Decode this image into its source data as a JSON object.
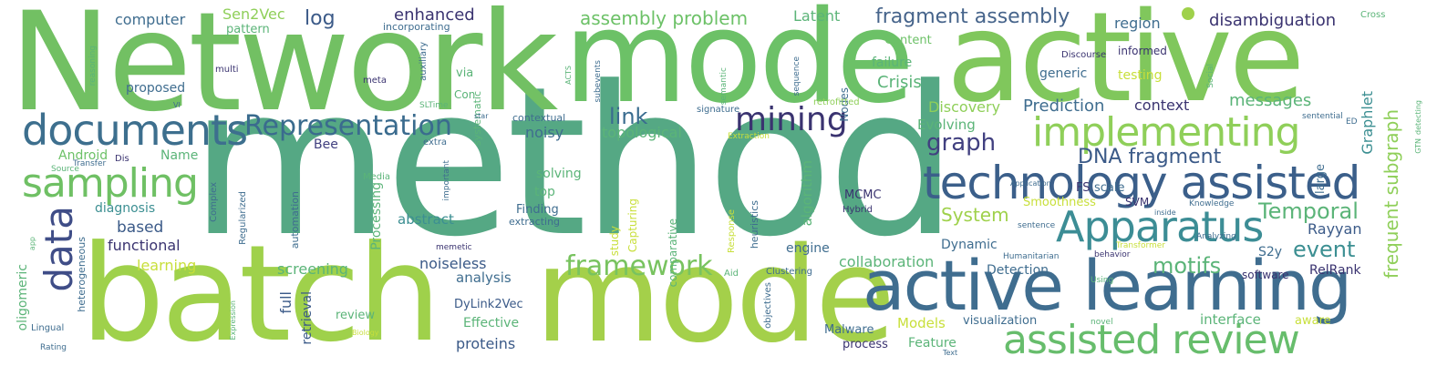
{
  "words": [
    {
      "text": "method",
      "color": "#55a884"
    },
    {
      "text": "Network",
      "color": "#72c063"
    },
    {
      "text": "mode",
      "color": "#6cc167"
    },
    {
      "text": "active",
      "color": "#80c75c"
    },
    {
      "text": "batch",
      "color": "#9fd14b"
    },
    {
      "text": "mode",
      "color": "#a4d04a"
    },
    {
      "text": "active learning",
      "color": "#3f6d8f"
    },
    {
      "text": "technology assisted",
      "color": "#3b5f8a"
    },
    {
      "text": "assisted review",
      "color": "#67bd6c"
    },
    {
      "text": "Apparatus",
      "color": "#3c8d95"
    },
    {
      "text": "implementing",
      "color": "#8fcf59"
    },
    {
      "text": "documents",
      "color": "#3d6f8e"
    },
    {
      "text": "sampling",
      "color": "#6fc064"
    },
    {
      "text": "data",
      "color": "#3f4d87"
    },
    {
      "text": "mining",
      "color": "#3a3370"
    },
    {
      "text": "Representation",
      "color": "#3a6b8e"
    },
    {
      "text": "framework",
      "color": "#78c35f"
    },
    {
      "text": "graph",
      "color": "#414080"
    },
    {
      "text": "Temporal",
      "color": "#5bb478"
    },
    {
      "text": "fragment assembly",
      "color": "#46648b"
    },
    {
      "text": "assembly problem",
      "color": "#6cc167"
    },
    {
      "text": "frequent subgraph",
      "color": "#8fcf59"
    },
    {
      "text": "DNA fragment",
      "color": "#3b5a88"
    },
    {
      "text": "link",
      "color": "#3a6c8f"
    },
    {
      "text": "motifs",
      "color": "#5bb478"
    },
    {
      "text": "event",
      "color": "#3c8f92"
    },
    {
      "text": "System",
      "color": "#9fd14b"
    },
    {
      "text": "Rayyan",
      "color": "#3b5a88"
    },
    {
      "text": "log",
      "color": "#3b5a88"
    },
    {
      "text": "enhanced",
      "color": "#3a3370"
    },
    {
      "text": "Sen2Vec",
      "color": "#8fcf59"
    },
    {
      "text": "computer",
      "color": "#3f6d8f"
    },
    {
      "text": "disambiguation",
      "color": "#3a3370"
    },
    {
      "text": "region",
      "color": "#3f6d8f"
    },
    {
      "text": "Latent",
      "color": "#5bb478"
    },
    {
      "text": "pattern",
      "color": "#5bb478"
    },
    {
      "text": "proposed",
      "color": "#3f6d8f"
    },
    {
      "text": "Crisis",
      "color": "#5bb478"
    },
    {
      "text": "failure",
      "color": "#5bb478"
    },
    {
      "text": "Content",
      "color": "#6cc167"
    },
    {
      "text": "generic",
      "color": "#3f6d8f"
    },
    {
      "text": "testing",
      "color": "#c8df3a"
    },
    {
      "text": "informed",
      "color": "#3a3370"
    },
    {
      "text": "Discovery",
      "color": "#8fcf59"
    },
    {
      "text": "Prediction",
      "color": "#3f6d8f"
    },
    {
      "text": "context",
      "color": "#3a3370"
    },
    {
      "text": "messages",
      "color": "#5bb478"
    },
    {
      "text": "Graphlet",
      "color": "#3c8f92"
    },
    {
      "text": "Evolving",
      "color": "#5bb478"
    },
    {
      "text": "topological",
      "color": "#5bb478"
    },
    {
      "text": "noisy",
      "color": "#3f6d8f"
    },
    {
      "text": "Bee",
      "color": "#414080"
    },
    {
      "text": "Name",
      "color": "#5bb478"
    },
    {
      "text": "Android",
      "color": "#6cc167"
    },
    {
      "text": "based",
      "color": "#3b5a88"
    },
    {
      "text": "functional",
      "color": "#3a3370"
    },
    {
      "text": "learning",
      "color": "#c8df3a"
    },
    {
      "text": "diagnosis",
      "color": "#3c8f92"
    },
    {
      "text": "abstract",
      "color": "#3c8f92"
    },
    {
      "text": "solving",
      "color": "#5bb478"
    },
    {
      "text": "Finding",
      "color": "#3f6d8f"
    },
    {
      "text": "top",
      "color": "#5bb478"
    },
    {
      "text": "noiseless",
      "color": "#3b5a88"
    },
    {
      "text": "analysis",
      "color": "#3f6d8f"
    },
    {
      "text": "screening",
      "color": "#5bb478"
    },
    {
      "text": "collaboration",
      "color": "#5bb478"
    },
    {
      "text": "Dynamic",
      "color": "#3f6d8f"
    },
    {
      "text": "Detection",
      "color": "#3f6d8f"
    },
    {
      "text": "software",
      "color": "#3a3370"
    },
    {
      "text": "RelRank",
      "color": "#3a3370"
    },
    {
      "text": "S2y",
      "color": "#3f6d8f"
    },
    {
      "text": "MCMC",
      "color": "#3a3370"
    },
    {
      "text": "algorithm",
      "color": "#5bb478"
    },
    {
      "text": "engine",
      "color": "#3f6d8f"
    },
    {
      "text": "scale",
      "color": "#3f6d8f"
    },
    {
      "text": "FS",
      "color": "#3a3370"
    },
    {
      "text": "SVM",
      "color": "#3a3370"
    },
    {
      "text": "large",
      "color": "#3f6d8f"
    },
    {
      "text": "Smoothness",
      "color": "#c8df3a"
    },
    {
      "text": "DyLink2Vec",
      "color": "#3b5a88"
    },
    {
      "text": "Effective",
      "color": "#5bb478"
    },
    {
      "text": "proteins",
      "color": "#3b5a88"
    },
    {
      "text": "review",
      "color": "#5bb478"
    },
    {
      "text": "full",
      "color": "#3b5a88"
    },
    {
      "text": "retrieval",
      "color": "#3b5a88"
    },
    {
      "text": "Malware",
      "color": "#3f6d8f"
    },
    {
      "text": "Models",
      "color": "#c8df3a"
    },
    {
      "text": "visualization",
      "color": "#3f6d8f"
    },
    {
      "text": "interface",
      "color": "#5bb478"
    },
    {
      "text": "aware",
      "color": "#c8df3a"
    },
    {
      "text": "process",
      "color": "#3a3370"
    },
    {
      "text": "Feature",
      "color": "#5bb478"
    },
    {
      "text": "oligomeric",
      "color": "#5bb478"
    },
    {
      "text": "heterogeneous",
      "color": "#3f6d8f"
    },
    {
      "text": "automation",
      "color": "#3f6d8f"
    },
    {
      "text": "Processing",
      "color": "#5bb478"
    },
    {
      "text": "comparative",
      "color": "#5bb478"
    },
    {
      "text": "study",
      "color": "#c8df3a"
    },
    {
      "text": "Capturing",
      "color": "#c8df3a"
    },
    {
      "text": "systematic",
      "color": "#5bb478"
    },
    {
      "text": "Nodes",
      "color": "#3f6d8f"
    },
    {
      "text": "via",
      "color": "#5bb478"
    },
    {
      "text": "Con",
      "color": "#5bb478"
    },
    {
      "text": "contextual",
      "color": "#3f6d8f"
    },
    {
      "text": "extra",
      "color": "#3f6d8f"
    },
    {
      "text": "signature",
      "color": "#3f6d8f"
    },
    {
      "text": "retrofitted",
      "color": "#8fcf59"
    },
    {
      "text": "multi",
      "color": "#3a3370"
    },
    {
      "text": "meta",
      "color": "#3a3370"
    },
    {
      "text": "incorporating",
      "color": "#3f6d8f"
    },
    {
      "text": "extracting",
      "color": "#3f6d8f"
    },
    {
      "text": "Dis",
      "color": "#3a3370"
    },
    {
      "text": "Media",
      "color": "#5bb478"
    },
    {
      "text": "memetic",
      "color": "#3a3370"
    },
    {
      "text": "Regularized",
      "color": "#3f6d8f"
    },
    {
      "text": "Complex",
      "color": "#3f6d8f"
    },
    {
      "text": "Lingual",
      "color": "#3f6d8f"
    },
    {
      "text": "Rating",
      "color": "#3f6d8f"
    },
    {
      "text": "Aid",
      "color": "#5bb478"
    },
    {
      "text": "Clustering",
      "color": "#3f6d8f"
    },
    {
      "text": "objectives",
      "color": "#3f6d8f"
    },
    {
      "text": "novel",
      "color": "#5bb478"
    },
    {
      "text": "Using",
      "color": "#5bb478"
    },
    {
      "text": "Humanitarian",
      "color": "#3f6d8f"
    },
    {
      "text": "behavior",
      "color": "#3a3370"
    },
    {
      "text": "Transformer",
      "color": "#c8df3a"
    },
    {
      "text": "Analyzing",
      "color": "#3f6d8f"
    },
    {
      "text": "sentence",
      "color": "#3f6d8f"
    },
    {
      "text": "Knowledge",
      "color": "#3f6d8f"
    },
    {
      "text": "inside",
      "color": "#3f6d8f"
    },
    {
      "text": "Hybrid",
      "color": "#3a3370"
    },
    {
      "text": "heuristics",
      "color": "#3f6d8f"
    },
    {
      "text": "Response",
      "color": "#c8df3a"
    },
    {
      "text": "Application",
      "color": "#3f6d8f"
    },
    {
      "text": "Extraction",
      "color": "#c8df3a"
    },
    {
      "text": "sentential",
      "color": "#3f6d8f"
    },
    {
      "text": "detecting",
      "color": "#5bb478"
    },
    {
      "text": "GTN",
      "color": "#5bb478"
    },
    {
      "text": "ED",
      "color": "#3f6d8f"
    },
    {
      "text": "Social",
      "color": "#5bb478"
    },
    {
      "text": "Cross",
      "color": "#5bb478"
    },
    {
      "text": "Discourse",
      "color": "#3a3370"
    },
    {
      "text": "sequence",
      "color": "#3f6d8f"
    },
    {
      "text": "semantic",
      "color": "#5bb478"
    },
    {
      "text": "auxiliary",
      "color": "#3f6d8f"
    },
    {
      "text": "reasoning",
      "color": "#5bb478"
    },
    {
      "text": "Transfer",
      "color": "#3f6d8f"
    },
    {
      "text": "Source",
      "color": "#5bb478"
    },
    {
      "text": "important",
      "color": "#3f6d8f"
    },
    {
      "text": "Text",
      "color": "#3f6d8f"
    },
    {
      "text": "Biology",
      "color": "#c8df3a"
    },
    {
      "text": "Expression",
      "color": "#5bb478"
    },
    {
      "text": "star",
      "color": "#3f6d8f"
    },
    {
      "text": "VI",
      "color": "#3f6d8f"
    },
    {
      "text": "ACTS",
      "color": "#5bb478"
    },
    {
      "text": "subevents",
      "color": "#3f6d8f"
    },
    {
      "text": "SLTime",
      "color": "#5bb478"
    },
    {
      "text": "app",
      "color": "#5bb478"
    }
  ]
}
